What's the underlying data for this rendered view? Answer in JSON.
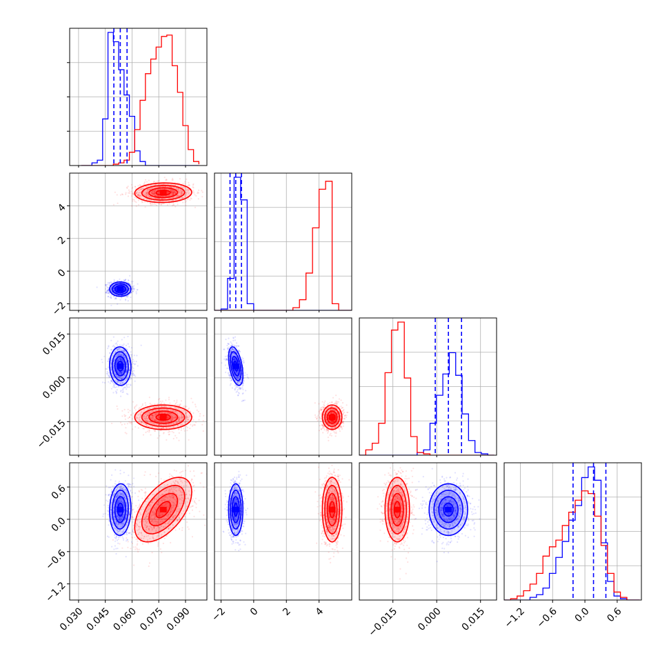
{
  "chart_data": {
    "type": "corner",
    "colors": {
      "series_a": "#0000ff",
      "series_b": "#ff0000",
      "grid": "#b0b0b0",
      "axis": "#000000"
    },
    "grid": true,
    "series": [
      {
        "color": "#0000ff",
        "quantiles": [
          [
            0.0498,
            0.0534,
            0.0572
          ],
          [
            -1.45,
            -1.1,
            -0.75
          ],
          [
            -0.0005,
            0.004,
            0.0085
          ],
          [
            -0.22,
            0.16,
            0.39
          ]
        ]
      },
      {
        "color": "#ff0000",
        "quantiles": null
      }
    ],
    "parameters": [
      {
        "range": [
          0.025,
          0.102
        ],
        "ticks": [
          {
            "v": 0.03,
            "label": "0.030"
          },
          {
            "v": 0.045,
            "label": "0.045"
          },
          {
            "v": 0.06,
            "label": "0.060"
          },
          {
            "v": 0.075,
            "label": "0.075"
          },
          {
            "v": 0.09,
            "label": "0.090"
          }
        ]
      },
      {
        "range": [
          -2.4,
          6.0
        ],
        "ticks": [
          {
            "v": -2,
            "label": "−2"
          },
          {
            "v": 0,
            "label": "0"
          },
          {
            "v": 2,
            "label": "2"
          },
          {
            "v": 4,
            "label": "4"
          }
        ]
      },
      {
        "range": [
          -0.0265,
          0.0205
        ],
        "ticks": [
          {
            "v": -0.015,
            "label": "−0.015"
          },
          {
            "v": 0.0,
            "label": "0.000"
          },
          {
            "v": 0.015,
            "label": "0.015"
          }
        ]
      },
      {
        "range": [
          -1.5,
          1.05
        ],
        "ticks": [
          {
            "v": -1.2,
            "label": "−1.2"
          },
          {
            "v": -0.6,
            "label": "−0.6"
          },
          {
            "v": 0.0,
            "label": "0.0"
          },
          {
            "v": 0.6,
            "label": "0.6"
          }
        ]
      }
    ],
    "diagonal_histograms": [
      {
        "bins": [
          0.0315,
          0.0345,
          0.0375,
          0.0405,
          0.0435,
          0.0465,
          0.0495,
          0.0525,
          0.0555,
          0.0585,
          0.0615,
          0.0645,
          0.0675,
          0.0705,
          0.0735,
          0.0765,
          0.0795,
          0.0825,
          0.0855,
          0.0885,
          0.0915,
          0.0945,
          0.0975
        ],
        "counts": [
          [
            0,
            0,
            0.02,
            0.04,
            0.35,
            1.0,
            0.93,
            0.72,
            0.53,
            0.37,
            0.11,
            0.03,
            0,
            0,
            0,
            0,
            0,
            0,
            0,
            0,
            0,
            0
          ],
          [
            0,
            0,
            0,
            0,
            0,
            0,
            0.01,
            0.02,
            0.04,
            0.1,
            0.27,
            0.49,
            0.69,
            0.8,
            0.89,
            0.97,
            0.98,
            0.75,
            0.55,
            0.3,
            0.12,
            0.03,
            0.01
          ]
        ]
      },
      {
        "bins": [
          -2.4,
          -2.0,
          -1.6,
          -1.2,
          -0.8,
          -0.4,
          0.0,
          0.4,
          0.8,
          1.2,
          1.6,
          2.0,
          2.4,
          2.8,
          3.2,
          3.6,
          4.0,
          4.4,
          4.8,
          5.2,
          5.6,
          6.0
        ],
        "counts": [
          [
            0,
            0.01,
            0.24,
            1.0,
            0.83,
            0.05,
            0,
            0,
            0,
            0,
            0,
            0,
            0,
            0,
            0,
            0,
            0,
            0,
            0,
            0,
            0
          ],
          [
            0,
            0,
            0,
            0,
            0,
            0,
            0,
            0,
            0,
            0,
            0,
            0,
            0.02,
            0.08,
            0.28,
            0.62,
            0.91,
            0.97,
            0.05,
            0,
            0
          ]
        ]
      },
      {
        "bins": [
          -0.0265,
          -0.0243,
          -0.0221,
          -0.0199,
          -0.0177,
          -0.0155,
          -0.0133,
          -0.0111,
          -0.0089,
          -0.0067,
          -0.0045,
          -0.0023,
          -0.0001,
          0.0021,
          0.0043,
          0.0065,
          0.0087,
          0.0109,
          0.0131,
          0.0153,
          0.0175,
          0.0197
        ],
        "counts": [
          [
            0,
            0,
            0,
            0,
            0,
            0,
            0,
            0,
            0,
            0.02,
            0.04,
            0.24,
            0.45,
            0.61,
            0.77,
            0.6,
            0.31,
            0.11,
            0.02,
            0.01,
            0
          ],
          [
            0,
            0.04,
            0.09,
            0.24,
            0.62,
            0.94,
            1.0,
            0.58,
            0.14,
            0.02,
            0.01,
            0,
            0,
            0,
            0,
            0,
            0,
            0,
            0,
            0,
            0
          ]
        ]
      },
      {
        "bins": [
          -1.5,
          -1.38,
          -1.26,
          -1.14,
          -1.02,
          -0.9,
          -0.78,
          -0.66,
          -0.54,
          -0.42,
          -0.3,
          -0.18,
          -0.06,
          0.06,
          0.18,
          0.3,
          0.42,
          0.54,
          0.66,
          0.78,
          0.9,
          1.02
        ],
        "counts": [
          [
            0,
            0,
            0,
            0,
            0.02,
            0.04,
            0.09,
            0.2,
            0.32,
            0.44,
            0.6,
            0.71,
            0.92,
            1.0,
            0.9,
            0.43,
            0.14,
            0.03,
            0.01,
            0,
            0
          ],
          [
            0,
            0.01,
            0.03,
            0.07,
            0.12,
            0.2,
            0.33,
            0.4,
            0.45,
            0.56,
            0.66,
            0.75,
            0.82,
            0.8,
            0.63,
            0.41,
            0.2,
            0.06,
            0.02,
            0,
            0
          ]
        ]
      }
    ],
    "blobs": [
      {
        "color": "#0000ff",
        "mean": [
          0.0534,
          -1.1,
          0.004,
          0.18
        ],
        "sd": [
          0.003,
          0.22,
          0.0033,
          0.24
        ],
        "corr": {
          "0-1": 0.0,
          "0-2": -0.05,
          "1-2": -0.45,
          "0-3": 0.05,
          "1-3": 0.0,
          "2-3": 0.0
        }
      },
      {
        "color": "#ff0000",
        "mean": [
          0.0775,
          4.8,
          -0.0135,
          0.18
        ],
        "sd": [
          0.008,
          0.3,
          0.0021,
          0.3
        ],
        "corr": {
          "0-1": 0.05,
          "0-2": 0.0,
          "1-2": 0.0,
          "0-3": 0.55,
          "1-3": 0.0,
          "2-3": 0.0
        }
      }
    ],
    "contour_levels_sigma": [
      0.5,
      1.0,
      1.5,
      2.0
    ]
  }
}
